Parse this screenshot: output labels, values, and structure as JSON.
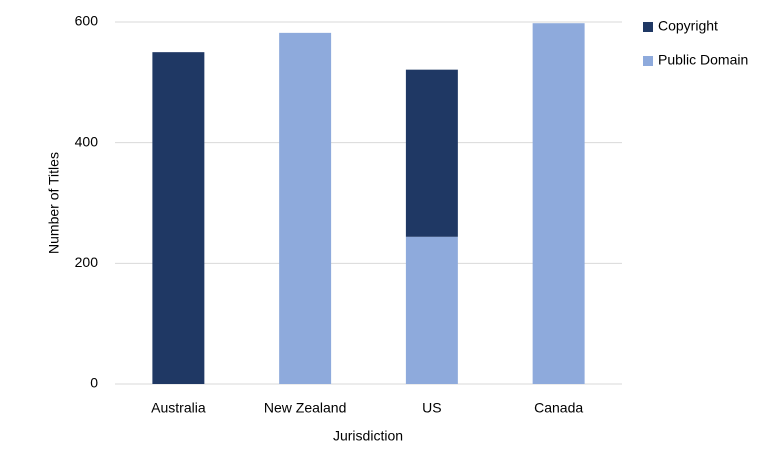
{
  "chart_data": {
    "type": "stacked-bar",
    "x_label": "Jurisdiction",
    "y_label": "Number of Titles",
    "categories": [
      "Australia",
      "New Zealand",
      "US",
      "Canada"
    ],
    "series": [
      {
        "name": "Copyright",
        "color": "#1f3864",
        "values": [
          550,
          0,
          277,
          0
        ]
      },
      {
        "name": "Public Domain",
        "color": "#8eaadc",
        "values": [
          0,
          582,
          244,
          598
        ]
      }
    ],
    "ylim": [
      0,
      600
    ],
    "yticks": [
      0,
      200,
      400,
      600
    ],
    "grid": true,
    "legend": "top-right"
  }
}
